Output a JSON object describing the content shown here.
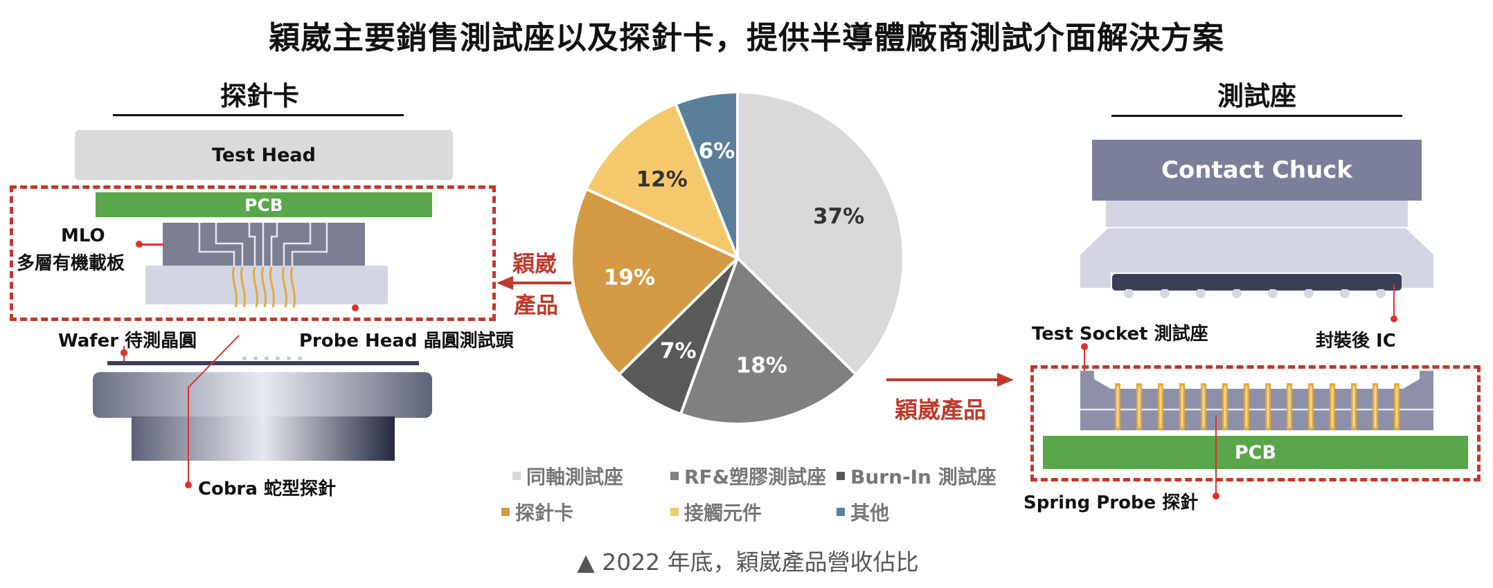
{
  "title": "穎崴主要銷售測試座以及探針卡，提供半導體廠商測試介面解決方案",
  "left": {
    "heading": "探針卡",
    "test_head": "Test Head",
    "pcb": "PCB",
    "mlo_line1": "MLO",
    "mlo_line2": "多層有機載板",
    "wafer": "Wafer 待測晶圓",
    "probe_head": "Probe Head 晶圓測試頭",
    "cobra": "Cobra 蛇型探針"
  },
  "right": {
    "heading": "測試座",
    "contact_chuck": "Contact Chuck",
    "test_socket": "Test Socket 測試座",
    "packaged_ic": "封裝後 IC",
    "pcb": "PCB",
    "spring_probe": "Spring Probe 探針"
  },
  "arrows": {
    "left_line1": "穎崴",
    "left_line2": "產品",
    "right": "穎崴產品"
  },
  "chart_data": {
    "type": "pie",
    "start": "12 o'clock, clockwise",
    "slices": [
      {
        "name": "同軸測試座",
        "value": 37,
        "label": "37%",
        "color": "#d9d9d9"
      },
      {
        "name": "RF&塑膠測試座",
        "value": 18,
        "label": "18%",
        "color": "#808080"
      },
      {
        "name": "Burn-In 測試座",
        "value": 7,
        "label": "7%",
        "color": "#595959"
      },
      {
        "name": "探針卡",
        "value": 19,
        "label": "19%",
        "color": "#d49a43"
      },
      {
        "name": "接觸元件",
        "value": 12,
        "label": "12%",
        "color": "#f5c96b"
      },
      {
        "name": "其他",
        "value": 6,
        "label": "6%",
        "color": "#5a7f9a"
      }
    ],
    "legend": [
      {
        "name": "同軸測試座",
        "color": "#d9d9d9"
      },
      {
        "name": "RF&塑膠測試座",
        "color": "#808080"
      },
      {
        "name": "Burn-In 測試座",
        "color": "#595959"
      },
      {
        "name": "探針卡",
        "color": "#d49a43"
      },
      {
        "name": "接觸元件",
        "color": "#f5c96b"
      },
      {
        "name": "其他",
        "color": "#5a7f9a"
      }
    ]
  },
  "caption": "▲ 2022 年底，穎崴產品營收佔比"
}
